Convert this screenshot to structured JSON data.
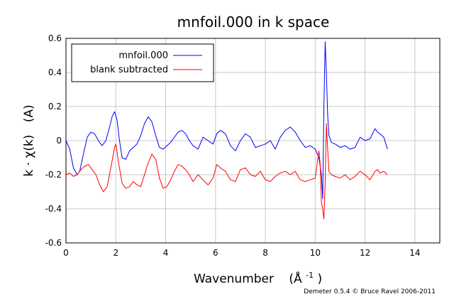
{
  "chart_data": {
    "type": "line",
    "title": "mnfoil.000 in k space",
    "xlabel": "Wavenumber",
    "xlabel_unit_base": "(Å",
    "xlabel_unit_sup": "-1",
    "xlabel_unit_close": ")",
    "ylabel": "k · χ(k)",
    "ylabel_unit": "(A)",
    "xlim": [
      0,
      15
    ],
    "ylim": [
      -0.6,
      0.6
    ],
    "xticks": [
      0,
      2,
      4,
      6,
      8,
      10,
      12,
      14
    ],
    "yticks": [
      -0.6,
      -0.4,
      -0.2,
      0,
      0.2,
      0.4,
      0.6
    ],
    "grid": true,
    "legend_position": "top-left",
    "series": [
      {
        "name": "mnfoil.000",
        "color": "#0000ff",
        "x": [
          0,
          0.15,
          0.3,
          0.45,
          0.55,
          0.7,
          0.85,
          1.0,
          1.15,
          1.3,
          1.45,
          1.6,
          1.75,
          1.85,
          1.95,
          2.05,
          2.15,
          2.25,
          2.4,
          2.55,
          2.7,
          2.85,
          3.0,
          3.15,
          3.3,
          3.45,
          3.6,
          3.75,
          3.9,
          4.05,
          4.2,
          4.35,
          4.5,
          4.65,
          4.8,
          4.95,
          5.1,
          5.3,
          5.5,
          5.7,
          5.9,
          6.05,
          6.2,
          6.4,
          6.6,
          6.8,
          7.0,
          7.2,
          7.4,
          7.6,
          7.8,
          8.0,
          8.2,
          8.4,
          8.6,
          8.8,
          9.0,
          9.2,
          9.4,
          9.6,
          9.8,
          10.0,
          10.15,
          10.25,
          10.3,
          10.35,
          10.4,
          10.45,
          10.5,
          10.55,
          10.65,
          10.8,
          11.0,
          11.2,
          11.4,
          11.6,
          11.8,
          12.0,
          12.2,
          12.4,
          12.5,
          12.6,
          12.75,
          12.9
        ],
        "values": [
          0.0,
          -0.05,
          -0.16,
          -0.2,
          -0.18,
          -0.08,
          0.02,
          0.05,
          0.04,
          0.0,
          -0.03,
          0.0,
          0.08,
          0.14,
          0.17,
          0.12,
          0.0,
          -0.1,
          -0.11,
          -0.06,
          -0.04,
          -0.02,
          0.03,
          0.1,
          0.14,
          0.11,
          0.03,
          -0.04,
          -0.05,
          -0.03,
          -0.01,
          0.02,
          0.05,
          0.06,
          0.04,
          0.0,
          -0.03,
          -0.05,
          0.02,
          0.0,
          -0.02,
          0.04,
          0.06,
          0.04,
          -0.03,
          -0.06,
          0.0,
          0.04,
          0.02,
          -0.04,
          -0.03,
          -0.02,
          0.0,
          -0.05,
          0.02,
          0.06,
          0.08,
          0.05,
          0.0,
          -0.04,
          -0.03,
          -0.05,
          -0.1,
          -0.2,
          -0.34,
          0.2,
          0.58,
          0.4,
          0.15,
          0.03,
          -0.01,
          -0.02,
          -0.04,
          -0.03,
          -0.05,
          -0.04,
          0.02,
          0.0,
          0.01,
          0.07,
          0.05,
          0.04,
          0.02,
          -0.05
        ]
      },
      {
        "name": "blank subtracted",
        "color": "#ff0000",
        "x": [
          0,
          0.15,
          0.3,
          0.45,
          0.6,
          0.75,
          0.9,
          1.05,
          1.2,
          1.35,
          1.5,
          1.65,
          1.8,
          1.95,
          2.0,
          2.1,
          2.25,
          2.4,
          2.55,
          2.7,
          2.85,
          3.0,
          3.15,
          3.3,
          3.45,
          3.6,
          3.75,
          3.9,
          4.05,
          4.2,
          4.35,
          4.5,
          4.65,
          4.8,
          4.95,
          5.1,
          5.3,
          5.5,
          5.7,
          5.9,
          6.05,
          6.2,
          6.4,
          6.6,
          6.8,
          7.0,
          7.2,
          7.4,
          7.6,
          7.8,
          8.0,
          8.2,
          8.4,
          8.6,
          8.8,
          9.0,
          9.2,
          9.4,
          9.6,
          9.8,
          10.0,
          10.15,
          10.2,
          10.25,
          10.3,
          10.35,
          10.4,
          10.45,
          10.5,
          10.55,
          10.65,
          10.8,
          11.0,
          11.2,
          11.4,
          11.6,
          11.8,
          12.0,
          12.2,
          12.4,
          12.5,
          12.6,
          12.75,
          12.9
        ],
        "values": [
          -0.2,
          -0.19,
          -0.21,
          -0.2,
          -0.17,
          -0.15,
          -0.14,
          -0.17,
          -0.2,
          -0.26,
          -0.3,
          -0.27,
          -0.16,
          -0.04,
          -0.02,
          -0.12,
          -0.25,
          -0.28,
          -0.27,
          -0.24,
          -0.26,
          -0.27,
          -0.2,
          -0.13,
          -0.08,
          -0.11,
          -0.22,
          -0.28,
          -0.27,
          -0.23,
          -0.18,
          -0.14,
          -0.15,
          -0.17,
          -0.2,
          -0.24,
          -0.2,
          -0.23,
          -0.26,
          -0.22,
          -0.14,
          -0.16,
          -0.18,
          -0.23,
          -0.24,
          -0.17,
          -0.16,
          -0.2,
          -0.21,
          -0.18,
          -0.23,
          -0.24,
          -0.21,
          -0.19,
          -0.18,
          -0.2,
          -0.18,
          -0.23,
          -0.24,
          -0.23,
          -0.22,
          -0.06,
          -0.14,
          -0.36,
          -0.4,
          -0.46,
          -0.24,
          0.1,
          -0.05,
          -0.18,
          -0.2,
          -0.21,
          -0.22,
          -0.2,
          -0.23,
          -0.21,
          -0.18,
          -0.2,
          -0.23,
          -0.18,
          -0.17,
          -0.19,
          -0.18,
          -0.2
        ]
      }
    ]
  },
  "footer": {
    "credit": "Demeter 0.5.4 © Bruce Ravel 2006-2011"
  }
}
